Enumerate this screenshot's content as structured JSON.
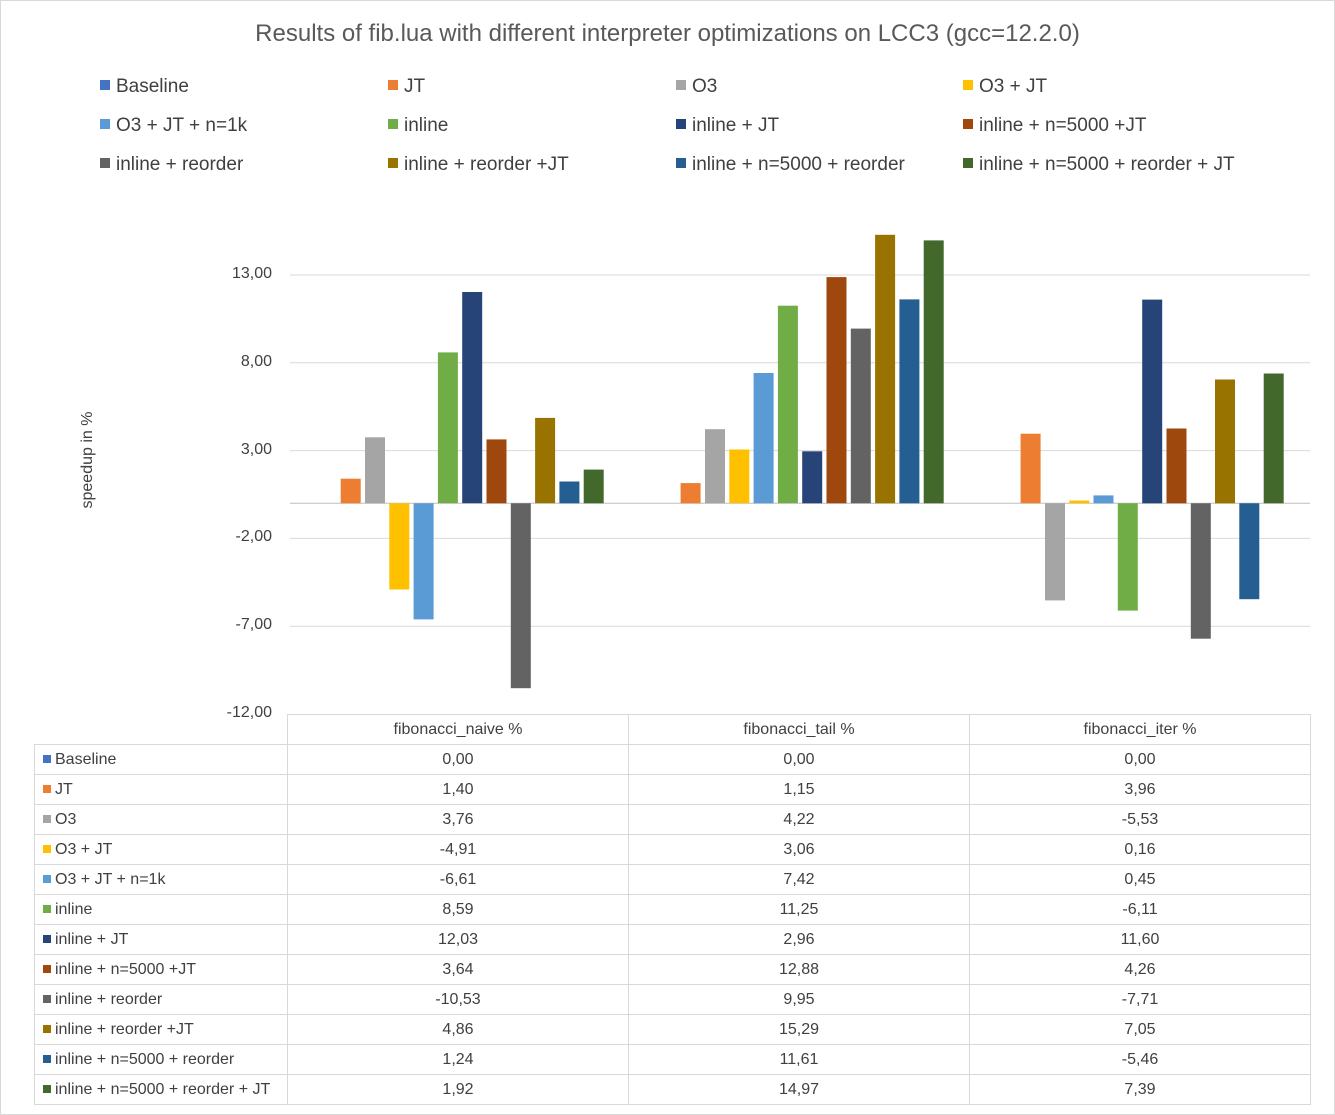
{
  "chart_data": {
    "type": "bar",
    "title": "Results of fib.lua with different interpreter optimizations on LCC3 (gcc=12.2.0)",
    "ylabel": "speedup in %",
    "xlabel": "",
    "ylim": [
      -12,
      13
    ],
    "yticks": [
      "13,00",
      "8,00",
      "3,00",
      "-2,00",
      "-7,00",
      "-12,00"
    ],
    "ytick_values": [
      13,
      8,
      3,
      -2,
      -7,
      -12
    ],
    "grid": true,
    "legend_position": "top",
    "categories": [
      "fibonacci_naive %",
      "fibonacci_tail %",
      "fibonacci_iter %"
    ],
    "series": [
      {
        "name": "Baseline",
        "color": "#4472C4",
        "values": [
          0.0,
          0.0,
          0.0
        ],
        "labels": [
          "0,00",
          "0,00",
          "0,00"
        ]
      },
      {
        "name": "JT",
        "color": "#ED7D31",
        "values": [
          1.4,
          1.15,
          3.96
        ],
        "labels": [
          "1,40",
          "1,15",
          "3,96"
        ]
      },
      {
        "name": "O3",
        "color": "#A5A5A5",
        "values": [
          3.76,
          4.22,
          -5.53
        ],
        "labels": [
          "3,76",
          "4,22",
          "-5,53"
        ]
      },
      {
        "name": "O3 + JT",
        "color": "#FFC000",
        "values": [
          -4.91,
          3.06,
          0.16
        ],
        "labels": [
          "-4,91",
          "3,06",
          "0,16"
        ]
      },
      {
        "name": "O3 + JT + n=1k",
        "color": "#5B9BD5",
        "values": [
          -6.61,
          7.42,
          0.45
        ],
        "labels": [
          "-6,61",
          "7,42",
          "0,45"
        ]
      },
      {
        "name": "inline",
        "color": "#70AD47",
        "values": [
          8.59,
          11.25,
          -6.11
        ],
        "labels": [
          "8,59",
          "11,25",
          "-6,11"
        ]
      },
      {
        "name": "inline + JT",
        "color": "#264478",
        "values": [
          12.03,
          2.96,
          11.6
        ],
        "labels": [
          "12,03",
          "2,96",
          "11,60"
        ]
      },
      {
        "name": "inline + n=5000 +JT",
        "color": "#9E480E",
        "values": [
          3.64,
          12.88,
          4.26
        ],
        "labels": [
          "3,64",
          "12,88",
          "4,26"
        ]
      },
      {
        "name": "inline + reorder",
        "color": "#636363",
        "values": [
          -10.53,
          9.95,
          -7.71
        ],
        "labels": [
          "-10,53",
          "9,95",
          "-7,71"
        ]
      },
      {
        "name": "inline + reorder +JT",
        "color": "#997300",
        "values": [
          4.86,
          15.29,
          7.05
        ],
        "labels": [
          "4,86",
          "15,29",
          "7,05"
        ]
      },
      {
        "name": "inline + n=5000 + reorder",
        "color": "#255E91",
        "values": [
          1.24,
          11.61,
          -5.46
        ],
        "labels": [
          "1,24",
          "11,61",
          "-5,46"
        ]
      },
      {
        "name": "inline + n=5000 + reorder + JT",
        "color": "#43682B",
        "values": [
          1.92,
          14.97,
          7.39
        ],
        "labels": [
          "1,92",
          "14,97",
          "7,39"
        ]
      }
    ]
  }
}
